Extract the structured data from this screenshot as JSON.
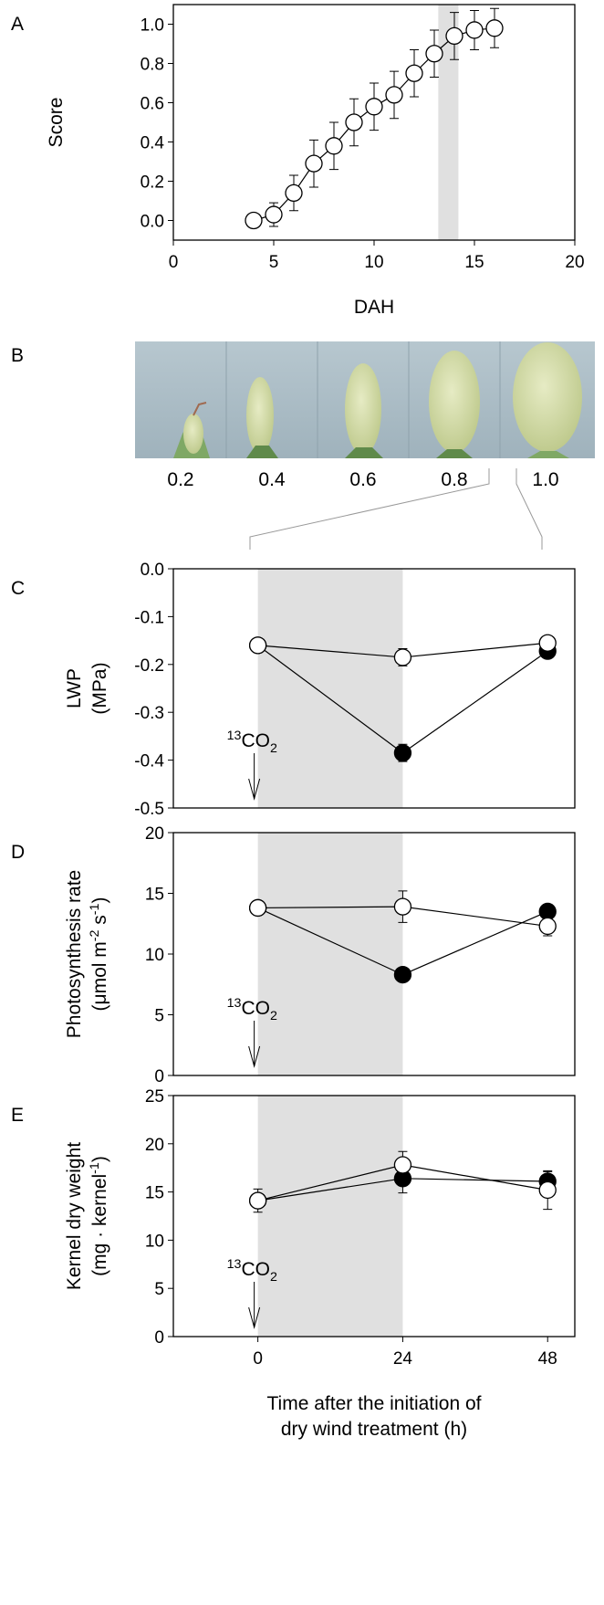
{
  "chart_data": [
    {
      "panel": "A",
      "type": "line",
      "xlabel": "DAH",
      "ylabel": [
        [
          {
            "text": "Score"
          }
        ]
      ],
      "x": [
        4,
        5,
        6,
        7,
        8,
        9,
        10,
        11,
        12,
        13,
        14,
        15,
        16
      ],
      "series": [
        {
          "color": "#ffffff",
          "values": [
            0,
            0.03,
            0.14,
            0.29,
            0.38,
            0.5,
            0.58,
            0.64,
            0.75,
            0.85,
            0.94,
            0.97,
            0.98
          ],
          "errors": [
            0,
            0.06,
            0.09,
            0.12,
            0.12,
            0.12,
            0.12,
            0.12,
            0.12,
            0.12,
            0.12,
            0.1,
            0.1
          ]
        }
      ],
      "shade": [
        13.2,
        14.2
      ],
      "xlim": [
        0,
        20
      ],
      "ylim": [
        -0.1,
        1.1
      ],
      "xticks": [
        0,
        5,
        10,
        15,
        20
      ],
      "yticks": [
        {
          "value": 0,
          "label": "0.0"
        },
        {
          "value": 0.2,
          "label": "0.2"
        },
        {
          "value": 0.4,
          "label": "0.4"
        },
        {
          "value": 0.6,
          "label": "0.6"
        },
        {
          "value": 0.8,
          "label": "0.8"
        },
        {
          "value": 1,
          "label": "1.0"
        }
      ]
    },
    {
      "panel": "C",
      "type": "line",
      "ylabel": [
        [
          {
            "text": "LWP"
          }
        ],
        [
          {
            "text": "(MPa)"
          }
        ]
      ],
      "x": [
        0,
        24,
        48
      ],
      "series": [
        {
          "color": "#000000",
          "values": [
            -0.16,
            -0.385,
            -0.172
          ],
          "errors": [
            0.005,
            0.018,
            0.008
          ]
        },
        {
          "color": "#ffffff",
          "values": [
            -0.16,
            -0.185,
            -0.155
          ],
          "errors": [
            0.005,
            0.018,
            0.005
          ]
        }
      ],
      "shade": [
        0,
        24
      ],
      "annotation": [
        {
          "sup": "13"
        },
        {
          "text": "CO"
        },
        {
          "sub": "2"
        }
      ],
      "xlim": [
        -14,
        52.5
      ],
      "ylim": [
        -0.5,
        0
      ],
      "yticks": [
        {
          "value": 0,
          "label": "0.0"
        },
        {
          "value": -0.1,
          "label": "-0.1"
        },
        {
          "value": -0.2,
          "label": "-0.2"
        },
        {
          "value": -0.3,
          "label": "-0.3"
        },
        {
          "value": -0.4,
          "label": "-0.4"
        },
        {
          "value": -0.5,
          "label": "-0.5"
        }
      ]
    },
    {
      "panel": "D",
      "type": "line",
      "ylabel": [
        [
          {
            "text": "Photosynthesis rate"
          }
        ],
        [
          {
            "text": "(μmol m"
          },
          {
            "sup": "-2"
          },
          {
            "text": " s"
          },
          {
            "sup": "-1"
          },
          {
            "text": ")"
          }
        ]
      ],
      "x": [
        0,
        24,
        48
      ],
      "series": [
        {
          "color": "#000000",
          "values": [
            13.8,
            8.3,
            13.5
          ],
          "errors": [
            0.2,
            0.3,
            0.6
          ]
        },
        {
          "color": "#ffffff",
          "values": [
            13.8,
            13.9,
            12.3
          ],
          "errors": [
            0.2,
            1.3,
            0.8
          ]
        }
      ],
      "shade": [
        0,
        24
      ],
      "annotation": [
        {
          "sup": "13"
        },
        {
          "text": "CO"
        },
        {
          "sub": "2"
        }
      ],
      "xlim": [
        -14,
        52.5
      ],
      "ylim": [
        0,
        20
      ],
      "yticks": [
        0,
        5,
        10,
        15,
        20
      ]
    },
    {
      "panel": "E",
      "type": "line",
      "ylabel": [
        [
          {
            "text": "Kernel dry weight"
          }
        ],
        [
          {
            "text": "(mg · kernel"
          },
          {
            "sup": "-1"
          },
          {
            "text": ")"
          }
        ]
      ],
      "xlabel": [
        "Time after the initiation of",
        "dry wind treatment (h)"
      ],
      "x": [
        0,
        24,
        48
      ],
      "series": [
        {
          "color": "#000000",
          "values": [
            14.1,
            16.4,
            16.1
          ],
          "errors": [
            0.5,
            1.5,
            1.0
          ]
        },
        {
          "color": "#ffffff",
          "values": [
            14.1,
            17.8,
            15.2
          ],
          "errors": [
            1.2,
            1.4,
            2.0
          ]
        }
      ],
      "shade": [
        0,
        24
      ],
      "annotation": [
        {
          "sup": "13"
        },
        {
          "text": "CO"
        },
        {
          "sub": "2"
        }
      ],
      "xlim": [
        -14,
        52.5
      ],
      "ylim": [
        0,
        25
      ],
      "xticks": [
        0,
        24,
        48
      ],
      "yticks": [
        0,
        5,
        10,
        15,
        20,
        25
      ]
    }
  ],
  "panel_b": {
    "panel": "B",
    "labels": [
      "0.2",
      "0.4",
      "0.6",
      "0.8",
      "1.0"
    ]
  }
}
